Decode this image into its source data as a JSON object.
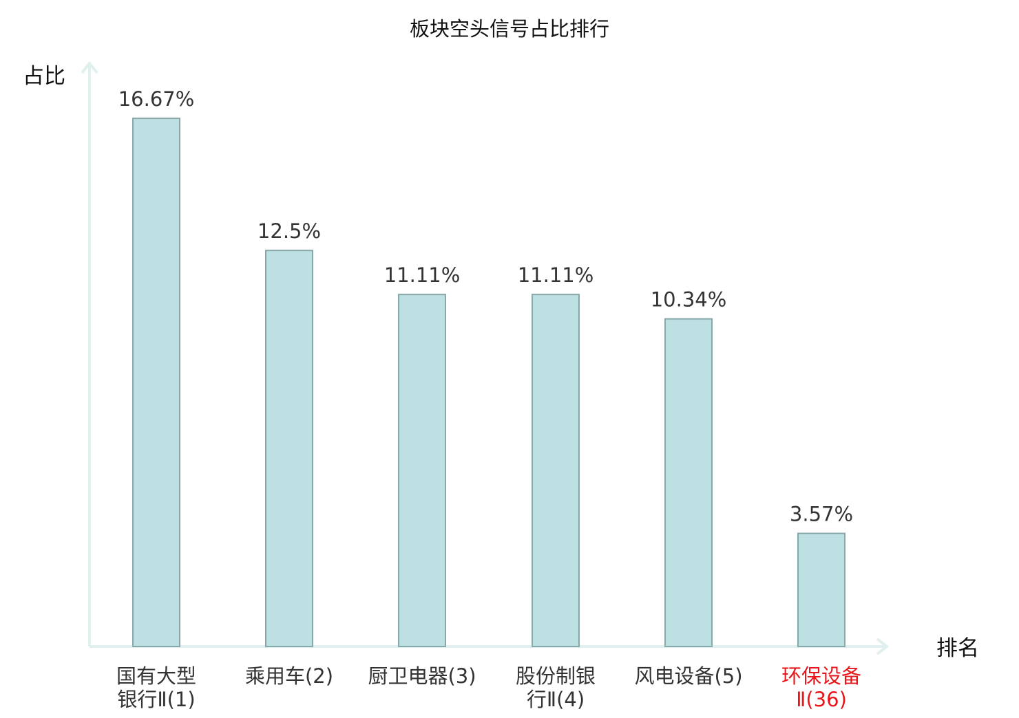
{
  "chart_data": {
    "type": "bar",
    "title": "板块空头信号占比排行",
    "ylabel": "占比",
    "xlabel": "排名",
    "categories": [
      [
        "国有大型",
        "银行Ⅱ(1)"
      ],
      [
        "乘用车(2)"
      ],
      [
        "厨卫电器(3)"
      ],
      [
        "股份制银",
        "行Ⅱ(4)"
      ],
      [
        "风电设备(5)"
      ],
      [
        "环保设备",
        "Ⅱ(36)"
      ]
    ],
    "values": [
      16.67,
      12.5,
      11.11,
      11.11,
      10.34,
      3.57
    ],
    "value_labels": [
      "16.67%",
      "12.5%",
      "11.11%",
      "11.11%",
      "10.34%",
      "3.57%"
    ],
    "highlighted_index": 5,
    "ylim": [
      0,
      17.8
    ],
    "grid": false,
    "colors": {
      "bar_fill": "#bde0e2",
      "bar_stroke": "#88a7a9",
      "axis": "#dff0ee",
      "text": "#333333",
      "highlight_text": "#e8161b",
      "title_text": "#111111"
    }
  }
}
